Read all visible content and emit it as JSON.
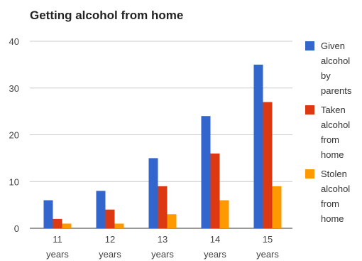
{
  "chart_data": {
    "type": "bar",
    "title": "Getting alcohol from home",
    "xlabel": "",
    "ylabel": "",
    "categories": [
      "11 years",
      "12 years",
      "13 years",
      "14 years",
      "15 years"
    ],
    "ylim": [
      0,
      40
    ],
    "yticks": [
      "0",
      "10",
      "20",
      "30",
      "40"
    ],
    "grid": true,
    "legend_position": "right",
    "series": [
      {
        "name": "Given alcohol by parents",
        "color": "#3366cc",
        "values": [
          6,
          8,
          15,
          24,
          35
        ]
      },
      {
        "name": "Taken alcohol from home",
        "color": "#dc3912",
        "values": [
          2,
          4,
          9,
          16,
          27
        ]
      },
      {
        "name": "Stolen alcohol from home",
        "color": "#ff9900",
        "values": [
          1,
          1,
          3,
          6,
          9
        ]
      }
    ]
  }
}
